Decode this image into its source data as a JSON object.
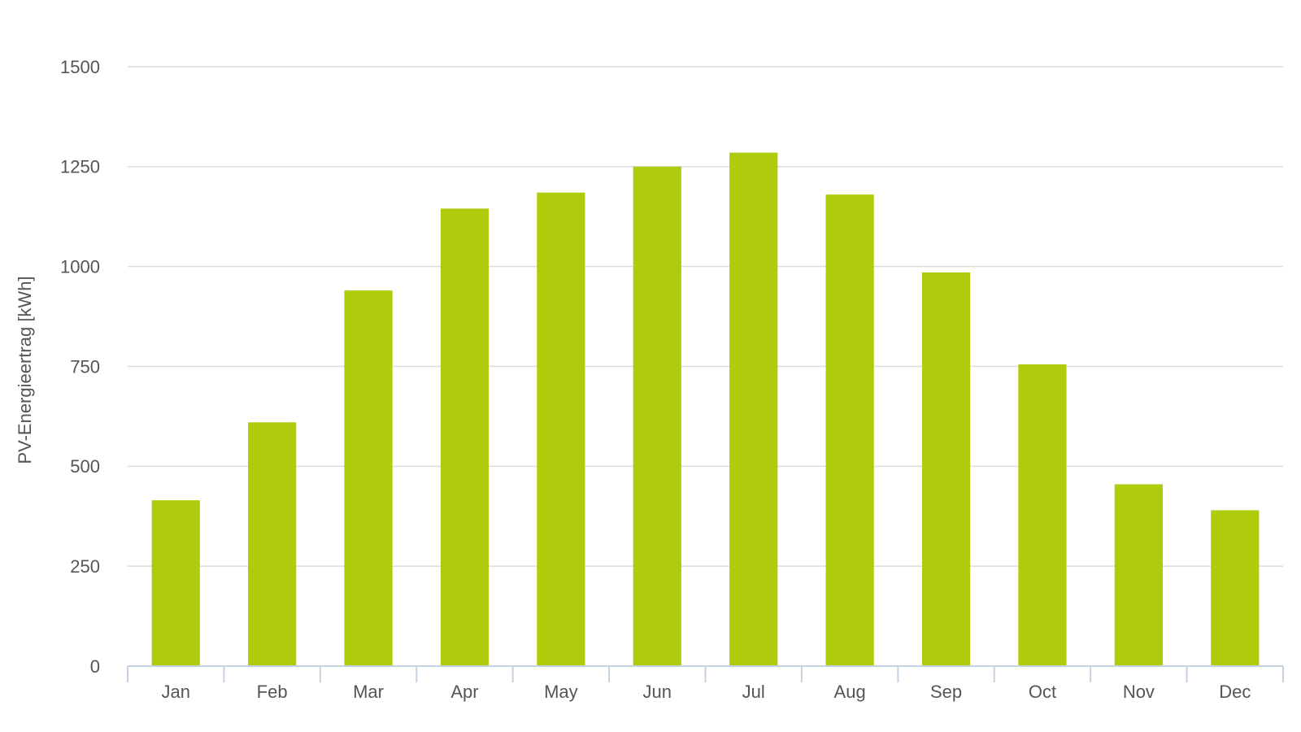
{
  "chart_data": {
    "type": "bar",
    "y_label": "PV-Energieertrag [kWh]",
    "categories": [
      "Jan",
      "Feb",
      "Mar",
      "Apr",
      "May",
      "Jun",
      "Jul",
      "Aug",
      "Sep",
      "Oct",
      "Nov",
      "Dec"
    ],
    "values": [
      415,
      610,
      940,
      1145,
      1185,
      1250,
      1285,
      1180,
      985,
      755,
      455,
      390
    ],
    "color": "#b0cb0b",
    "ylim": [
      0,
      1500
    ],
    "yticks": [
      0,
      250,
      500,
      750,
      1000,
      1250,
      1500
    ],
    "grid": true
  }
}
